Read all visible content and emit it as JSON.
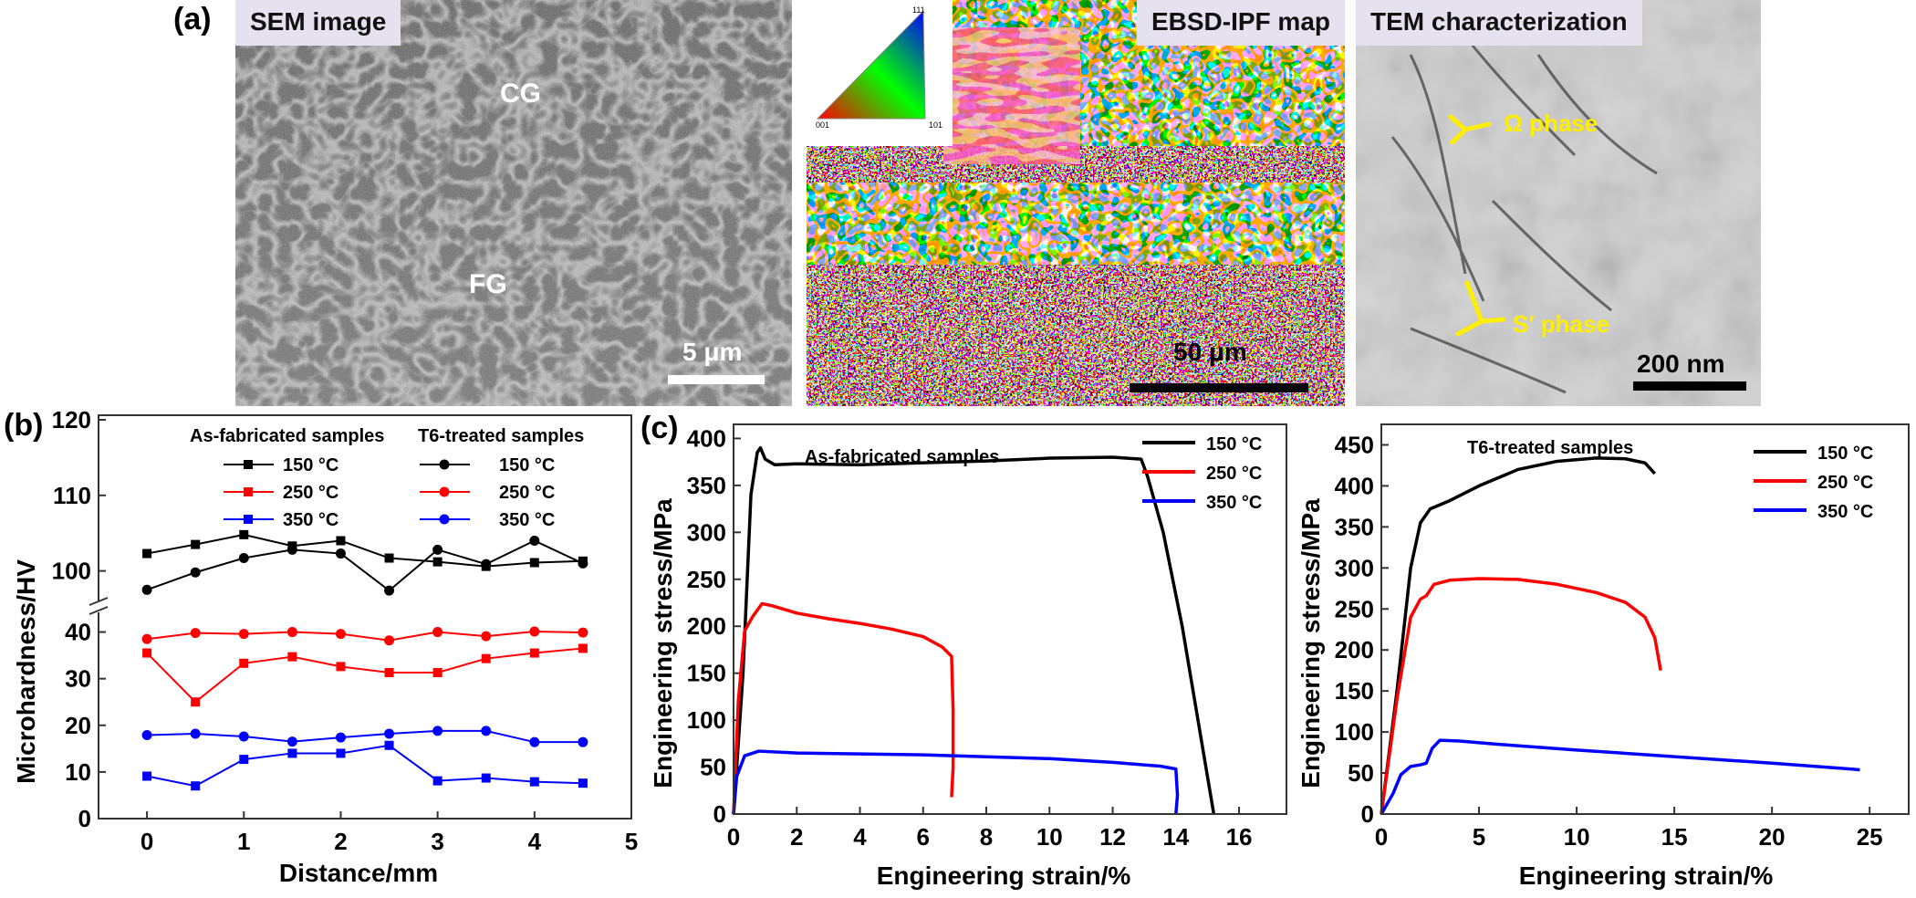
{
  "panel_labels": {
    "a": "(a)",
    "b": "(b)",
    "c": "(c)"
  },
  "micrographs": {
    "sem": {
      "tag": "SEM image",
      "label_cg": "CG",
      "label_fg": "FG",
      "scale": "5 μm"
    },
    "ebsd": {
      "tag": "EBSD-IPF map",
      "scale": "50 μm",
      "ipf_corners": {
        "top": "111",
        "left": "001",
        "right": "101"
      }
    },
    "tem": {
      "tag": "TEM characterization",
      "omega": "Ω phase",
      "s_prime": "S′ phase",
      "scale": "200 nm"
    }
  },
  "chart_data": [
    {
      "id": "b",
      "type": "line",
      "xlabel": "Distance/mm",
      "ylabel": "Microhardness/HV",
      "xlim": [
        -0.5,
        5
      ],
      "xticks": [
        0,
        1,
        2,
        3,
        4,
        5
      ],
      "yticks_lower": [
        0,
        10,
        20,
        30,
        40
      ],
      "yticks_upper": [
        100,
        110,
        120
      ],
      "axis_break": true,
      "legend": {
        "header_left": "As-fabricated samples",
        "header_right": "T6-treated samples",
        "rows": [
          {
            "left": "150 °C",
            "right": "150 °C",
            "color": "#000000"
          },
          {
            "left": "250 °C",
            "right": "250 °C",
            "color": "#ff0000"
          },
          {
            "left": "350 °C",
            "right": "350 °C",
            "color": "#0000ff"
          }
        ]
      },
      "x": [
        0,
        0.5,
        1,
        1.5,
        2,
        2.5,
        3,
        3.5,
        4,
        4.5
      ],
      "series": [
        {
          "name": "As-fabricated 150 °C",
          "marker": "square",
          "color": "#000000",
          "values": [
            102.3,
            103.5,
            104.8,
            103.3,
            104.0,
            101.7,
            101.2,
            100.6,
            101.1,
            101.3
          ]
        },
        {
          "name": "T6-treated 150 °C",
          "marker": "circle",
          "color": "#000000",
          "values": [
            97.5,
            99.8,
            101.7,
            102.8,
            102.3,
            97.4,
            102.8,
            100.9,
            104.0,
            101.0
          ]
        },
        {
          "name": "As-fabricated 250 °C",
          "marker": "square",
          "color": "#ff0000",
          "values": [
            35.5,
            25.0,
            33.3,
            34.7,
            32.6,
            31.3,
            31.3,
            34.3,
            35.5,
            36.5
          ]
        },
        {
          "name": "T6-treated 250 °C",
          "marker": "circle",
          "color": "#ff0000",
          "values": [
            38.5,
            39.8,
            39.6,
            40.0,
            39.6,
            38.2,
            40.0,
            39.1,
            40.1,
            39.9
          ]
        },
        {
          "name": "As-fabricated 350 °C",
          "marker": "square",
          "color": "#0000ff",
          "values": [
            9.1,
            7.0,
            12.7,
            14.0,
            14.0,
            15.7,
            8.1,
            8.7,
            7.9,
            7.6
          ]
        },
        {
          "name": "T6-treated 350 °C",
          "marker": "circle",
          "color": "#0000ff",
          "values": [
            17.9,
            18.2,
            17.6,
            16.5,
            17.4,
            18.2,
            18.8,
            18.8,
            16.4,
            16.4
          ]
        }
      ]
    },
    {
      "id": "c-left",
      "type": "line",
      "title": "As-fabricated samples",
      "xlabel": "Engineering strain/%",
      "ylabel": "Engineering stress/MPa",
      "xlim": [
        0,
        17.5
      ],
      "ylim": [
        0,
        415
      ],
      "xticks": [
        0,
        2,
        4,
        6,
        8,
        10,
        12,
        14,
        16
      ],
      "yticks": [
        0,
        50,
        100,
        150,
        200,
        250,
        300,
        350,
        400
      ],
      "series": [
        {
          "name": "150 °C",
          "color": "#000000",
          "points": [
            [
              0,
              0
            ],
            [
              0.3,
              150
            ],
            [
              0.55,
              340
            ],
            [
              0.75,
              385
            ],
            [
              0.85,
              390
            ],
            [
              1.0,
              378
            ],
            [
              1.3,
              372
            ],
            [
              2,
              373
            ],
            [
              4,
              372
            ],
            [
              6,
              374
            ],
            [
              8,
              376
            ],
            [
              10,
              379
            ],
            [
              12,
              380
            ],
            [
              12.9,
              378
            ],
            [
              13.1,
              360
            ],
            [
              13.6,
              300
            ],
            [
              14.2,
              200
            ],
            [
              14.7,
              100
            ],
            [
              15.2,
              0
            ]
          ]
        },
        {
          "name": "250 °C",
          "color": "#ff0000",
          "points": [
            [
              0,
              0
            ],
            [
              0.15,
              120
            ],
            [
              0.35,
              195
            ],
            [
              0.6,
              210
            ],
            [
              0.9,
              224
            ],
            [
              1.2,
              222
            ],
            [
              2,
              214
            ],
            [
              3,
              208
            ],
            [
              4,
              203
            ],
            [
              5,
              197
            ],
            [
              6,
              189
            ],
            [
              6.6,
              178
            ],
            [
              6.9,
              168
            ],
            [
              6.95,
              110
            ],
            [
              6.95,
              50
            ],
            [
              6.9,
              18
            ]
          ]
        },
        {
          "name": "350 °C",
          "color": "#0000ff",
          "points": [
            [
              0,
              0
            ],
            [
              0.1,
              40
            ],
            [
              0.35,
              62
            ],
            [
              0.8,
              67
            ],
            [
              2,
              65
            ],
            [
              4,
              64
            ],
            [
              6,
              63
            ],
            [
              8,
              61
            ],
            [
              10,
              59
            ],
            [
              12,
              55
            ],
            [
              13.5,
              51
            ],
            [
              14.0,
              48
            ],
            [
              14.05,
              20
            ],
            [
              14.0,
              0
            ]
          ]
        }
      ]
    },
    {
      "id": "c-right",
      "type": "line",
      "title": "T6-treated samples",
      "xlabel": "Engineering strain/%",
      "ylabel": "Engineering stress/MPa",
      "xlim": [
        0,
        27
      ],
      "ylim": [
        0,
        475
      ],
      "xticks": [
        0,
        5,
        10,
        15,
        20,
        25
      ],
      "yticks": [
        0,
        50,
        100,
        150,
        200,
        250,
        300,
        350,
        400,
        450
      ],
      "series": [
        {
          "name": "150 °C",
          "color": "#000000",
          "points": [
            [
              0,
              0
            ],
            [
              0.8,
              150
            ],
            [
              1.5,
              300
            ],
            [
              2.0,
              355
            ],
            [
              2.5,
              372
            ],
            [
              3.5,
              382
            ],
            [
              5,
              400
            ],
            [
              7,
              420
            ],
            [
              9,
              430
            ],
            [
              11,
              434
            ],
            [
              12.5,
              433
            ],
            [
              13.5,
              428
            ],
            [
              14.0,
              415
            ]
          ]
        },
        {
          "name": "250 °C",
          "color": "#ff0000",
          "points": [
            [
              0,
              0
            ],
            [
              0.8,
              140
            ],
            [
              1.5,
              240
            ],
            [
              2.0,
              262
            ],
            [
              2.3,
              266
            ],
            [
              2.7,
              280
            ],
            [
              3.5,
              285
            ],
            [
              5,
              287
            ],
            [
              7,
              286
            ],
            [
              9,
              280
            ],
            [
              11,
              270
            ],
            [
              12.5,
              258
            ],
            [
              13.5,
              240
            ],
            [
              14.0,
              215
            ],
            [
              14.3,
              175
            ]
          ]
        },
        {
          "name": "350 °C",
          "color": "#0000ff",
          "points": [
            [
              0,
              0
            ],
            [
              0.6,
              25
            ],
            [
              1.0,
              48
            ],
            [
              1.5,
              58
            ],
            [
              2.0,
              60
            ],
            [
              2.3,
              62
            ],
            [
              2.6,
              80
            ],
            [
              3.0,
              90
            ],
            [
              4,
              89
            ],
            [
              6,
              85
            ],
            [
              10,
              78
            ],
            [
              15,
              70
            ],
            [
              20,
              62
            ],
            [
              24.5,
              54
            ]
          ]
        }
      ]
    }
  ]
}
